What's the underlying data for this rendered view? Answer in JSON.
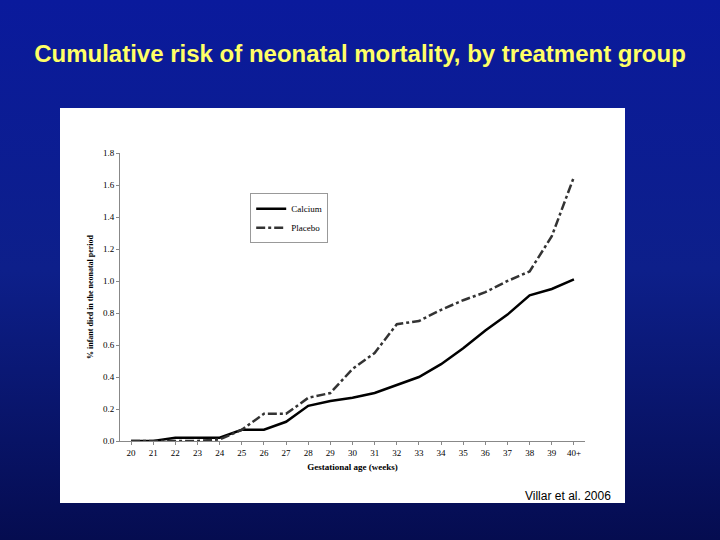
{
  "chart_data": {
    "type": "line",
    "title": "Cumulative risk of neonatal mortality, by treatment group",
    "x_label": "Gestational age (weeks)",
    "y_label": "% infant died in the neonatal period",
    "categories": [
      "20",
      "21",
      "22",
      "23",
      "24",
      "25",
      "26",
      "27",
      "28",
      "29",
      "30",
      "31",
      "32",
      "33",
      "34",
      "35",
      "36",
      "37",
      "38",
      "39",
      "40+"
    ],
    "series": [
      {
        "name": "Calcium",
        "color": "#000000",
        "line_style": "solid",
        "values": [
          0,
          0,
          0.02,
          0.02,
          0.02,
          0.07,
          0.07,
          0.12,
          0.22,
          0.25,
          0.27,
          0.3,
          0.35,
          0.4,
          0.48,
          0.58,
          0.69,
          0.79,
          0.91,
          0.95,
          1.01
        ]
      },
      {
        "name": "Placebo",
        "color": "#333333",
        "line_style": "dashdot",
        "values": [
          0,
          0,
          0,
          0,
          0.01,
          0.07,
          0.17,
          0.17,
          0.27,
          0.3,
          0.45,
          0.55,
          0.73,
          0.75,
          0.82,
          0.88,
          0.93,
          1.0,
          1.06,
          1.28,
          1.65
        ]
      }
    ],
    "ylim": [
      0,
      1.8
    ],
    "yticks": [
      {
        "value": 0,
        "label": "0.0"
      },
      {
        "value": 0.2,
        "label": "0.2"
      },
      {
        "value": 0.4,
        "label": "0.4"
      },
      {
        "value": 0.6,
        "label": "0.6"
      },
      {
        "value": 0.8,
        "label": "0.8"
      },
      {
        "value": 1.0,
        "label": "1.0"
      },
      {
        "value": 1.2,
        "label": "1.2"
      },
      {
        "value": 1.4,
        "label": "1.4"
      },
      {
        "value": 1.6,
        "label": "1.6"
      },
      {
        "value": 1.8,
        "label": "1.8"
      }
    ],
    "grid": false,
    "legend": "upper left",
    "annotations": [
      {
        "text": "Villar et al. 2006"
      }
    ]
  }
}
